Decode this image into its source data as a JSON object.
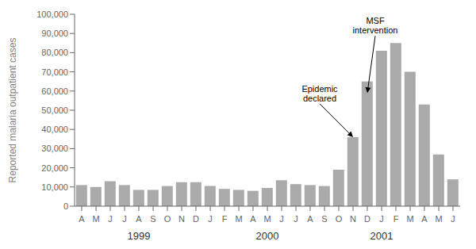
{
  "chart_data": {
    "type": "bar",
    "ylabel": "Reported malaria outpatient cases",
    "categories": [
      "A",
      "M",
      "J",
      "J",
      "A",
      "S",
      "O",
      "N",
      "D",
      "J",
      "F",
      "M",
      "A",
      "M",
      "J",
      "J",
      "A",
      "S",
      "O",
      "N",
      "D",
      "J",
      "F",
      "M",
      "A",
      "M",
      "J"
    ],
    "values": [
      11000,
      10000,
      13000,
      11000,
      8500,
      8500,
      10500,
      12500,
      12500,
      10500,
      9000,
      8500,
      8000,
      9500,
      13500,
      11500,
      11000,
      10500,
      19000,
      36000,
      65000,
      81000,
      85000,
      70000,
      53000,
      27000,
      14000
    ],
    "color": "#aaaaaa",
    "ylim": [
      0,
      100000
    ],
    "yticks": [
      0,
      {
        "value": 10000,
        "label": "10,000"
      },
      {
        "value": 20000,
        "label": "20,000"
      },
      {
        "value": 30000,
        "label": "30,000"
      },
      {
        "value": 40000,
        "label": "40,000"
      },
      {
        "value": 50000,
        "label": "50,000"
      },
      {
        "value": 60000,
        "label": "60,000"
      },
      {
        "value": 70000,
        "label": "70,000"
      },
      {
        "value": 80000,
        "label": "80,000"
      },
      {
        "value": 90000,
        "label": "90,000"
      },
      {
        "value": 100000,
        "label": "100,000"
      }
    ],
    "grid": false,
    "year_labels": [
      {
        "label": "1999",
        "position": 4
      },
      {
        "label": "2000",
        "position": 13
      },
      {
        "label": "2001",
        "position": 21
      }
    ],
    "annotations": [
      {
        "text": "Epidemic\ndeclared",
        "x": 19,
        "y": 36000
      },
      {
        "text": "MSF\nintervention",
        "x": 20,
        "y": 59000
      }
    ]
  }
}
